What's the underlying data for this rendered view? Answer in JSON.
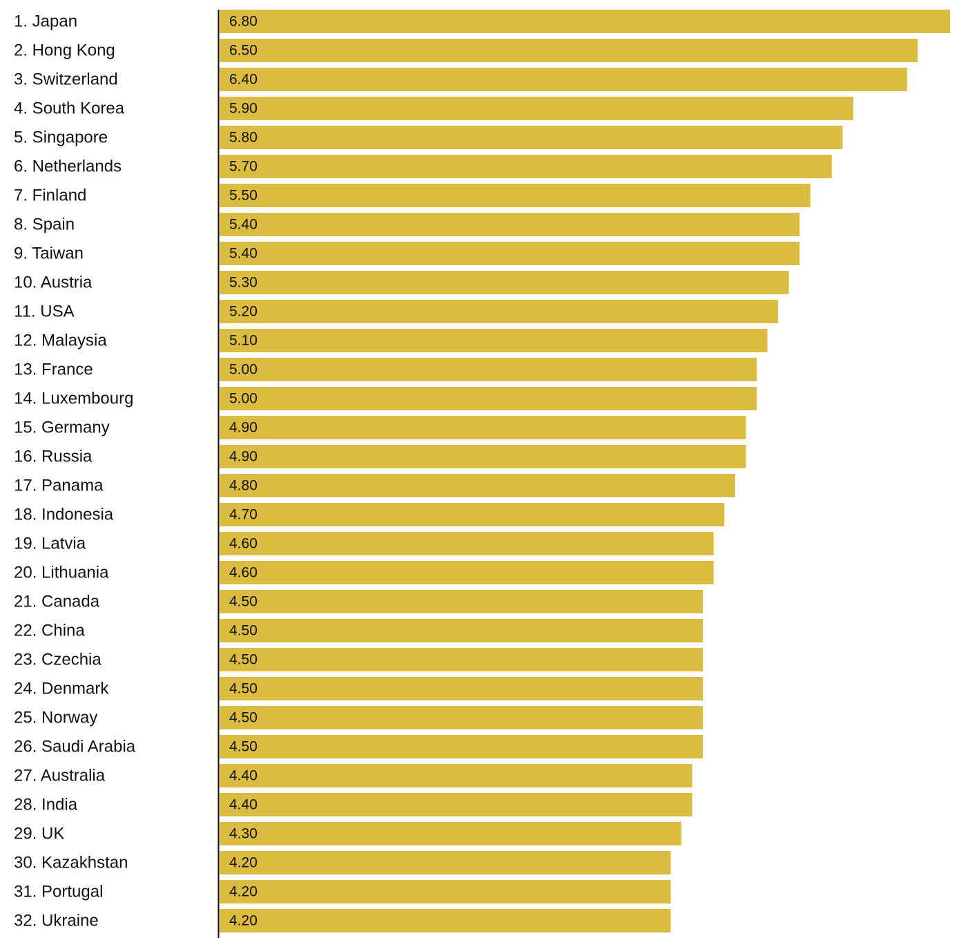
{
  "chart_data": {
    "type": "bar",
    "orientation": "horizontal",
    "color": "#dbbc40",
    "categories": [
      "1. Japan",
      "2. Hong Kong",
      "3. Switzerland",
      "4. South Korea",
      "5. Singapore",
      "6. Netherlands",
      "7. Finland",
      "8. Spain",
      "9. Taiwan",
      "10. Austria",
      "11. USA",
      "12. Malaysia",
      "13. France",
      "14. Luxembourg",
      "15. Germany",
      "16. Russia",
      "17. Panama",
      "18. Indonesia",
      "19. Latvia",
      "20. Lithuania",
      "21. Canada",
      "22. China",
      "23. Czechia",
      "24. Denmark",
      "25. Norway",
      "26. Saudi Arabia",
      "27. Australia",
      "28. India",
      "29. UK",
      "30. Kazakhstan",
      "31. Portugal",
      "32. Ukraine"
    ],
    "values": [
      6.8,
      6.5,
      6.4,
      5.9,
      5.8,
      5.7,
      5.5,
      5.4,
      5.4,
      5.3,
      5.2,
      5.1,
      5.0,
      5.0,
      4.9,
      4.9,
      4.8,
      4.7,
      4.6,
      4.6,
      4.5,
      4.5,
      4.5,
      4.5,
      4.5,
      4.5,
      4.4,
      4.4,
      4.3,
      4.2,
      4.2,
      4.2
    ],
    "value_labels": [
      "6.80",
      "6.50",
      "6.40",
      "5.90",
      "5.80",
      "5.70",
      "5.50",
      "5.40",
      "5.40",
      "5.30",
      "5.20",
      "5.10",
      "5.00",
      "5.00",
      "4.90",
      "4.90",
      "4.80",
      "4.70",
      "4.60",
      "4.60",
      "4.50",
      "4.50",
      "4.50",
      "4.50",
      "4.50",
      "4.50",
      "4.40",
      "4.40",
      "4.30",
      "4.20",
      "4.20",
      "4.20"
    ],
    "xlim": [
      0,
      6.8
    ]
  }
}
